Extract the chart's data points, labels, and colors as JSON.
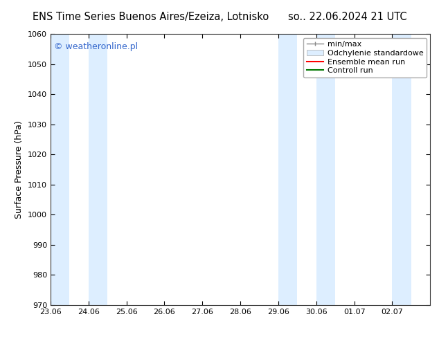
{
  "title_left": "ENS Time Series Buenos Aires/Ezeiza, Lotnisko",
  "title_right": "so.. 22.06.2024 21 UTC",
  "ylabel": "Surface Pressure (hPa)",
  "ylim": [
    970,
    1060
  ],
  "yticks": [
    970,
    980,
    990,
    1000,
    1010,
    1020,
    1030,
    1040,
    1050,
    1060
  ],
  "xlim_start": 0.0,
  "xlim_end": 10.0,
  "xtick_labels": [
    "23.06",
    "24.06",
    "25.06",
    "26.06",
    "27.06",
    "28.06",
    "29.06",
    "30.06",
    "01.07",
    "02.07"
  ],
  "xtick_positions": [
    0,
    1,
    2,
    3,
    4,
    5,
    6,
    7,
    8,
    9
  ],
  "shaded_bands": [
    {
      "x_start": 0.0,
      "x_end": 0.5
    },
    {
      "x_start": 1.0,
      "x_end": 1.5
    },
    {
      "x_start": 6.0,
      "x_end": 6.5
    },
    {
      "x_start": 7.0,
      "x_end": 7.5
    },
    {
      "x_start": 9.0,
      "x_end": 9.5
    },
    {
      "x_start": 10.0,
      "x_end": 10.0
    }
  ],
  "band_color": "#ddeeff",
  "background_color": "#ffffff",
  "watermark_text": "© weatheronline.pl",
  "watermark_color": "#3366cc",
  "legend_items": [
    {
      "label": "min/max",
      "type": "errorbar",
      "color": "#aaaaaa"
    },
    {
      "label": "Odchylenie standardowe",
      "type": "fill",
      "color": "#ddeeff"
    },
    {
      "label": "Ensemble mean run",
      "type": "line",
      "color": "#ff0000"
    },
    {
      "label": "Controll run",
      "type": "line",
      "color": "#007700"
    }
  ],
  "title_fontsize": 10.5,
  "axis_label_fontsize": 9,
  "tick_fontsize": 8,
  "watermark_fontsize": 9,
  "legend_fontsize": 8
}
